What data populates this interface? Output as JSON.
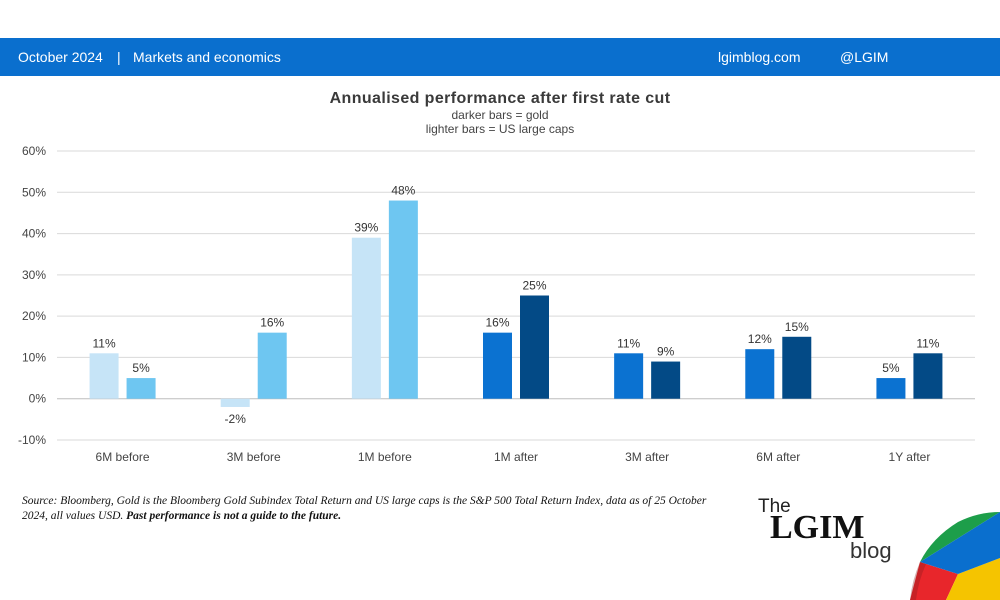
{
  "header": {
    "date": "October 2024",
    "separator": "|",
    "section": "Markets and economics",
    "site": "lgimblog.com",
    "handle": "@LGIM"
  },
  "chart_data": {
    "type": "bar",
    "title": "Annualised performance after first rate cut",
    "subtitle_lines": [
      "darker bars = gold",
      "lighter bars = US large caps"
    ],
    "categories": [
      "6M before",
      "3M before",
      "1M before",
      "1M after",
      "3M after",
      "6M after",
      "1Y after"
    ],
    "series": [
      {
        "values": [
          11,
          -2,
          39,
          16,
          11,
          12,
          5
        ],
        "colors": [
          "#c6e4f7",
          "#c6e4f7",
          "#c6e4f7",
          "#0b72d1",
          "#0b72d1",
          "#0b72d1",
          "#0b72d1"
        ]
      },
      {
        "values": [
          5,
          16,
          48,
          25,
          9,
          15,
          11
        ],
        "colors": [
          "#6ec6f1",
          "#6ec6f1",
          "#6ec6f1",
          "#034a86",
          "#034a86",
          "#034a86",
          "#034a86"
        ]
      }
    ],
    "data_labels": [
      [
        "11%",
        "-2%",
        "39%",
        "16%",
        "11%",
        "12%",
        "5%"
      ],
      [
        "5%",
        "16%",
        "48%",
        "25%",
        "9%",
        "15%",
        "11%"
      ]
    ],
    "ylim": [
      -10,
      60
    ],
    "yticks": [
      -10,
      0,
      10,
      20,
      30,
      40,
      50,
      60
    ],
    "ytick_labels": [
      "-10%",
      "0%",
      "10%",
      "20%",
      "30%",
      "40%",
      "50%",
      "60%"
    ],
    "grid": true,
    "legend": "none"
  },
  "source": {
    "text": "Source: Bloomberg, Gold is the Bloomberg Gold Subindex Total Return and US large caps is the S&P 500 Total Return Index, data as of 25 October 2024, all values USD. ",
    "bold": "Past performance is not a guide to the future."
  },
  "logo": {
    "top": "The",
    "main": "LGIM",
    "bottom": "blog"
  }
}
